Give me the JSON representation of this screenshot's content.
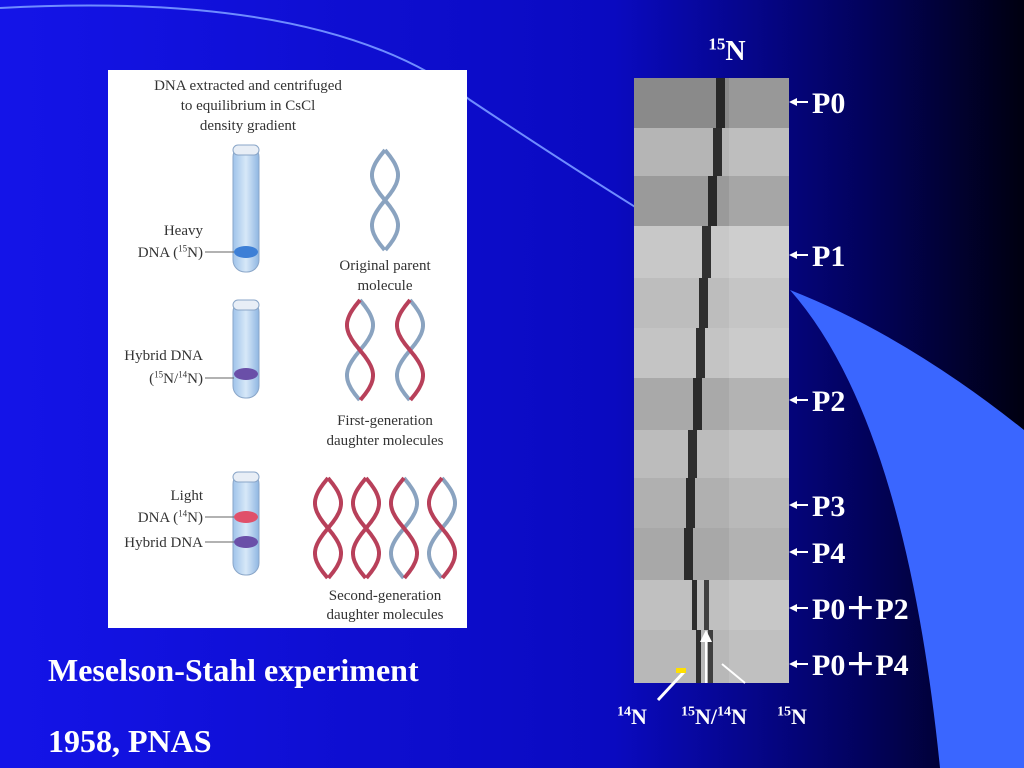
{
  "figure": {
    "heading": [
      [
        "DNA extracted and centrifuged"
      ],
      [
        "to equilibrium in CsCl"
      ],
      [
        "density gradient"
      ]
    ],
    "rows": [
      {
        "tube_label": [
          [
            "Heavy"
          ],
          [
            "DNA (",
            {
              "sup": "15",
              "text": "N)"
            }
          ]
        ],
        "molecule_label": [
          [
            "Original parent"
          ],
          [
            "molecule"
          ]
        ]
      },
      {
        "tube_label": [
          [
            "Hybrid DNA"
          ],
          [
            "(",
            {
              "sup": "15",
              "text": "N/"
            },
            {
              "sup": "14",
              "text": "N)"
            }
          ]
        ],
        "molecule_label": [
          [
            "First-generation"
          ],
          [
            "daughter molecules"
          ]
        ]
      },
      {
        "tube_label": [
          [
            "Light"
          ],
          [
            "DNA (",
            {
              "sup": "14",
              "text": "N)"
            }
          ]
        ],
        "extra_label": [
          [
            "Hybrid DNA"
          ]
        ],
        "molecule_label": [
          [
            "Second-generation"
          ],
          [
            "daughter molecules"
          ]
        ]
      }
    ]
  },
  "caption": {
    "title": "Meselson-Stahl experiment",
    "source": "1958, PNAS"
  },
  "gel": {
    "top_label": [
      {
        "sup": "15",
        "text": "N"
      }
    ],
    "generations": [
      "P0",
      "P1",
      "P2",
      "P3",
      "P4",
      "P0＋P2",
      "P0＋P4"
    ],
    "bottom_labels": [
      [
        {
          "sup": "14",
          "text": "N"
        }
      ],
      [
        {
          "sup": "15",
          "text": "N/"
        },
        {
          "sup": "14",
          "text": "N"
        }
      ],
      [
        {
          "sup": "15",
          "text": "N"
        }
      ]
    ]
  }
}
